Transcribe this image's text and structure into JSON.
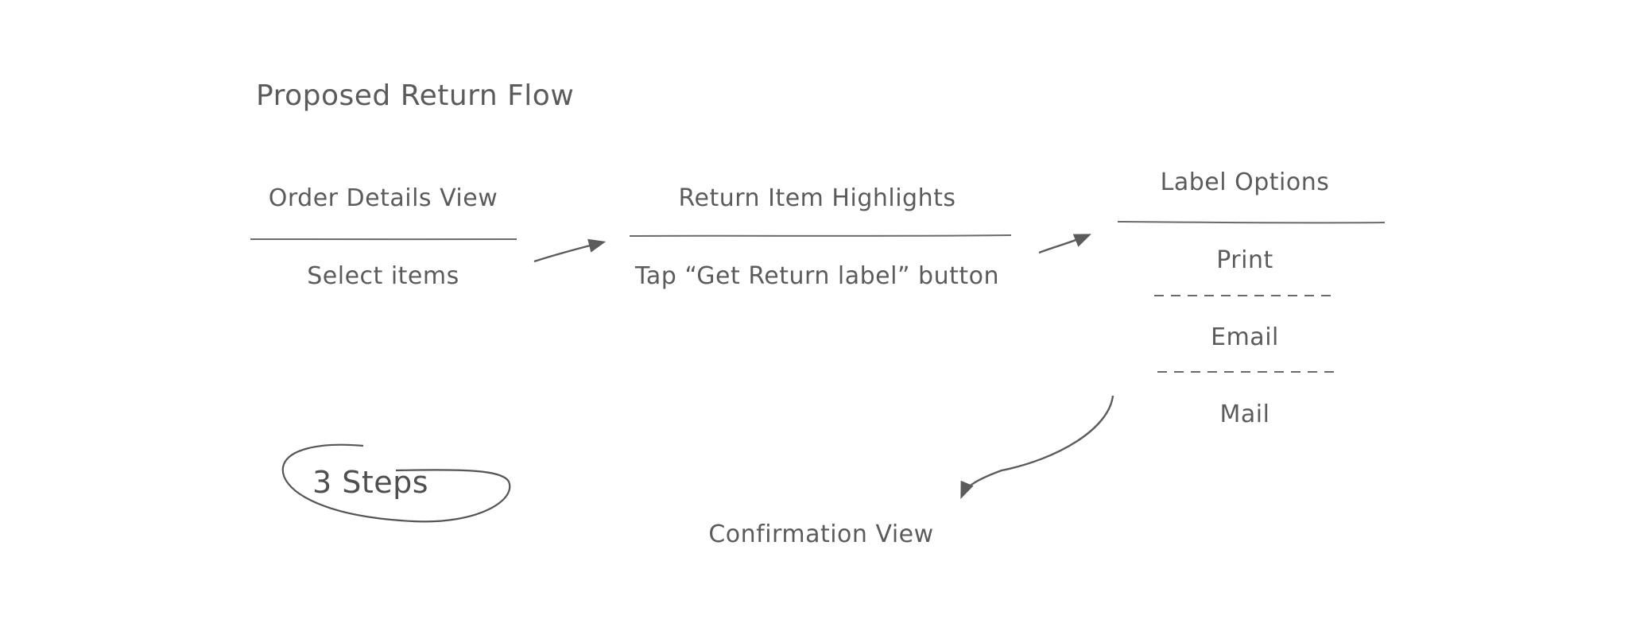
{
  "diagram": {
    "title": "Proposed Return Flow",
    "steps": [
      {
        "heading": "Order Details View",
        "action": "Select items"
      },
      {
        "heading": "Return Item Highlights",
        "action": "Tap “Get Return label” button"
      },
      {
        "heading": "Label Options",
        "options": [
          "Print",
          "Email",
          "Mail"
        ]
      }
    ],
    "final_step": "Confirmation View",
    "callout": "3 Steps",
    "colors": {
      "ink": "#5b5b5b",
      "background": "#ffffff"
    }
  }
}
